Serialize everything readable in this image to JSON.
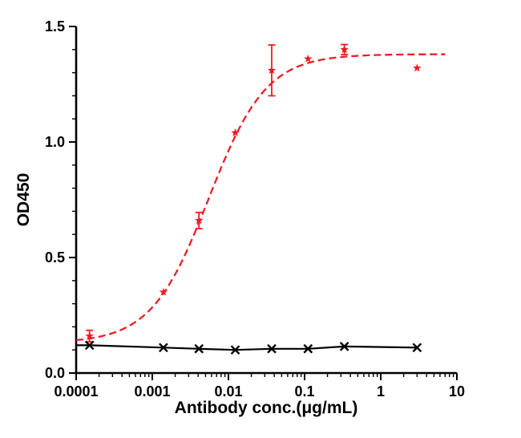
{
  "figure": {
    "background": "#ffffff"
  },
  "chart_data": {
    "type": "scatter",
    "title": "",
    "xlabel": "Antibody conc.(μg/mL)",
    "ylabel": "OD450",
    "x_scale": "log",
    "xlim": [
      0.0001,
      10
    ],
    "ylim": [
      0,
      1.5
    ],
    "grid": false,
    "legend": "none",
    "x_major_ticks": [
      0.0001,
      0.001,
      0.01,
      0.1,
      1,
      10
    ],
    "x_major_tick_labels": [
      "0.0001",
      "0.001",
      "0.01",
      "0.1",
      "1",
      "10"
    ],
    "y_major_ticks": [
      0.0,
      0.5,
      1.0,
      1.5
    ],
    "y_major_tick_labels": [
      "0.0",
      "0.5",
      "1.0",
      "1.5"
    ],
    "y_minor_step": 0.1,
    "series": [
      {
        "name": "red-star-dashed-series",
        "color": "#ed1c24",
        "marker": "star",
        "line_style": "dashed",
        "x": [
          0.00015,
          0.0014,
          0.0041,
          0.0123,
          0.037,
          0.111,
          0.333,
          3
        ],
        "y": [
          0.16,
          0.35,
          0.66,
          1.04,
          1.31,
          1.36,
          1.4,
          1.32
        ],
        "yerr": [
          0.025,
          0.01,
          0.035,
          0.012,
          0.11,
          0.012,
          0.022,
          0.006
        ],
        "fit": {
          "type": "4pl",
          "bottom": 0.13,
          "top": 1.38,
          "ec50": 0.0055,
          "hill": 1.15,
          "x_range": [
            0.0001,
            7
          ]
        }
      },
      {
        "name": "black-x-solid-series",
        "color": "#000000",
        "marker": "x",
        "line_style": "solid",
        "x": [
          0.00015,
          0.0014,
          0.0041,
          0.0123,
          0.037,
          0.111,
          0.333,
          3
        ],
        "y": [
          0.12,
          0.11,
          0.105,
          0.1,
          0.105,
          0.105,
          0.115,
          0.11
        ],
        "yerr": [
          0.01,
          0.008,
          0.006,
          0.005,
          0.006,
          0.005,
          0.008,
          0.005
        ]
      }
    ]
  }
}
